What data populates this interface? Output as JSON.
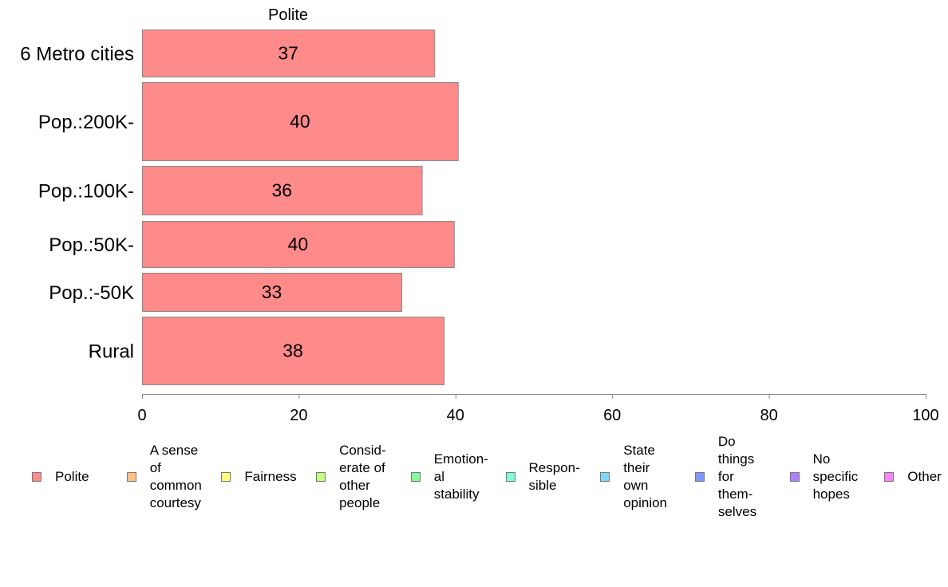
{
  "chart_data": {
    "type": "bar",
    "orientation": "horizontal",
    "title": "Polite",
    "categories": [
      "6 Metro cities",
      "Pop.:200K-",
      "Pop.:100K-",
      "Pop.:50K-",
      "Pop.:-50K",
      "Rural"
    ],
    "series": [
      {
        "name": "Polite",
        "values": [
          37.3,
          40.3,
          35.7,
          39.8,
          33.1,
          38.5
        ],
        "labels": [
          "37",
          "40",
          "36",
          "40",
          "33",
          "38"
        ],
        "color": "#ff8a8a"
      }
    ],
    "xlim": [
      0,
      100
    ],
    "xticks": [
      "0",
      "20",
      "40",
      "60",
      "80",
      "100"
    ],
    "xlabel": "",
    "ylabel": "",
    "grid": false,
    "legend_position": "bottom",
    "legend": [
      {
        "label": "Polite",
        "color": "#ff8a8a"
      },
      {
        "label": "A sense\nof\ncommon\ncourtesy",
        "color": "#ffc080"
      },
      {
        "label": "Fairness",
        "color": "#ffff80"
      },
      {
        "label": "Consid-\nerate of\nother\npeople",
        "color": "#c0ff80"
      },
      {
        "label": "Emotion-\nal\nstability",
        "color": "#80ff9a"
      },
      {
        "label": "Respon-\nsible",
        "color": "#80ffd8"
      },
      {
        "label": "State\ntheir\nown\nopinion",
        "color": "#80d8ff"
      },
      {
        "label": "Do\nthings\nfor\nthem-\nselves",
        "color": "#8098ff"
      },
      {
        "label": "No\nspecific\nhopes",
        "color": "#b080ff"
      },
      {
        "label": "Other",
        "color": "#ff80ff"
      }
    ]
  }
}
